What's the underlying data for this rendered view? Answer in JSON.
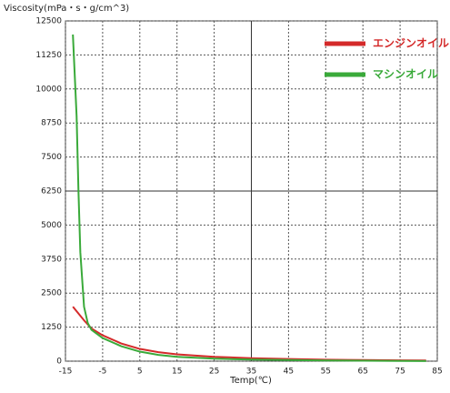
{
  "chart_data": {
    "type": "line",
    "title": "Viscosity(mPa・s・g/cm^3)",
    "x_label": "Temp(℃)",
    "xlim": [
      -15,
      85
    ],
    "xticks": [
      -15,
      -5,
      5,
      15,
      25,
      35,
      45,
      55,
      65,
      75,
      85
    ],
    "ylim": [
      0,
      12500
    ],
    "yticks": [
      0,
      1250,
      2500,
      3750,
      5000,
      6250,
      7500,
      8750,
      10000,
      11250,
      12500
    ],
    "grid": true,
    "series": [
      {
        "name": "エンジンオイル",
        "color": "#d42a2a",
        "x": [
          -13,
          -10,
          -8,
          -5,
          0,
          5,
          10,
          15,
          25,
          35,
          45,
          55,
          65,
          75,
          82
        ],
        "values": [
          2000,
          1500,
          1200,
          950,
          650,
          450,
          330,
          250,
          160,
          110,
          80,
          55,
          40,
          30,
          25
        ]
      },
      {
        "name": "マシンオイル",
        "color": "#3aaa3a",
        "x": [
          -13,
          -12,
          -11.5,
          -11,
          -10,
          -9,
          -8,
          -5,
          0,
          5,
          10,
          15,
          25,
          35,
          45,
          55,
          65,
          75,
          82
        ],
        "values": [
          12000,
          9000,
          6250,
          4000,
          2000,
          1400,
          1150,
          850,
          550,
          350,
          230,
          160,
          90,
          60,
          40,
          25,
          15,
          10,
          5
        ]
      }
    ]
  }
}
